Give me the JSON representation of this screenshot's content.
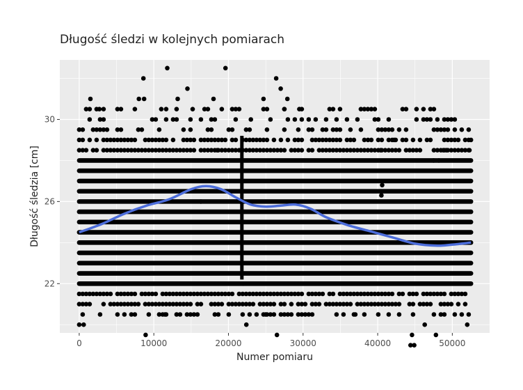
{
  "chart_data": {
    "type": "scatter",
    "title": "Długość śledzi w kolejnych pomiarach",
    "xlabel": "Numer pomiaru",
    "ylabel": "Długość śledzia [cm]",
    "xlim": [
      -2600,
      55000
    ],
    "ylim": [
      19.6,
      32.9
    ],
    "x_ticks": [
      0,
      10000,
      20000,
      30000,
      40000,
      50000
    ],
    "x_tick_labels": [
      "0",
      "10000",
      "20000",
      "30000",
      "40000",
      "50000"
    ],
    "y_ticks": [
      22,
      26,
      30
    ],
    "y_tick_labels": [
      "22",
      "26",
      "30"
    ],
    "grid": true,
    "colors": {
      "panel": "#ebebeb",
      "grid": "#ffffff",
      "points": "#000000",
      "smooth": "#4c6ddb"
    },
    "measured_lengths_cm": [
      20.5,
      21,
      21.5,
      22,
      22.5,
      23,
      23.5,
      24,
      24.5,
      25,
      25.5,
      26,
      26.5,
      27,
      27.5,
      28,
      28.5,
      29,
      29.5,
      30,
      30.5
    ],
    "outliers": [
      {
        "x": 0,
        "y": 20.0
      },
      {
        "x": 600,
        "y": 20.0
      },
      {
        "x": 1500,
        "y": 31.0
      },
      {
        "x": 2700,
        "y": 30.5
      },
      {
        "x": 8600,
        "y": 32.0
      },
      {
        "x": 8900,
        "y": 19.5
      },
      {
        "x": 8000,
        "y": 31.0
      },
      {
        "x": 8700,
        "y": 31.0
      },
      {
        "x": 11800,
        "y": 32.5
      },
      {
        "x": 11000,
        "y": 30.5
      },
      {
        "x": 11500,
        "y": 20.5
      },
      {
        "x": 13200,
        "y": 31.0
      },
      {
        "x": 14500,
        "y": 31.5
      },
      {
        "x": 15200,
        "y": 30.5
      },
      {
        "x": 16800,
        "y": 30.5
      },
      {
        "x": 18000,
        "y": 31.0
      },
      {
        "x": 19600,
        "y": 32.5
      },
      {
        "x": 18500,
        "y": 28.5
      },
      {
        "x": 22000,
        "y": 22.0
      },
      {
        "x": 23000,
        "y": 30.0
      },
      {
        "x": 24700,
        "y": 31.0
      },
      {
        "x": 26400,
        "y": 32.0
      },
      {
        "x": 27000,
        "y": 31.5
      },
      {
        "x": 27500,
        "y": 30.5
      },
      {
        "x": 27900,
        "y": 31.0
      },
      {
        "x": 29500,
        "y": 30.5
      },
      {
        "x": 26500,
        "y": 19.5
      },
      {
        "x": 22400,
        "y": 20.0
      },
      {
        "x": 25000,
        "y": 20.5
      },
      {
        "x": 37000,
        "y": 20.5
      },
      {
        "x": 38700,
        "y": 29.0
      },
      {
        "x": 40400,
        "y": 28.5
      },
      {
        "x": 42200,
        "y": 29.0
      },
      {
        "x": 40500,
        "y": 26.3
      },
      {
        "x": 40600,
        "y": 26.8
      },
      {
        "x": 44400,
        "y": 19.0
      },
      {
        "x": 44900,
        "y": 19.0
      },
      {
        "x": 44600,
        "y": 19.5
      },
      {
        "x": 46300,
        "y": 20.0
      },
      {
        "x": 47800,
        "y": 19.5
      },
      {
        "x": 48800,
        "y": 28.5
      },
      {
        "x": 49200,
        "y": 28.5
      },
      {
        "x": 48200,
        "y": 28.0
      },
      {
        "x": 47500,
        "y": 28.0
      },
      {
        "x": 52000,
        "y": 20.0
      },
      {
        "x": 52500,
        "y": 29.0
      },
      {
        "x": 52300,
        "y": 28.5
      },
      {
        "x": 52400,
        "y": 27.5
      },
      {
        "x": 21600,
        "y": 26.0
      },
      {
        "x": 16300,
        "y": 26.0
      }
    ],
    "series": [
      {
        "type": "smooth",
        "x": [
          0,
          3000,
          6000,
          9000,
          12000,
          15000,
          17000,
          19000,
          21000,
          23000,
          25000,
          27000,
          29000,
          31000,
          33000,
          36000,
          39000,
          42000,
          45000,
          48000,
          50000,
          52500
        ],
        "values": [
          24.5,
          24.9,
          25.4,
          25.8,
          26.1,
          26.6,
          26.75,
          26.6,
          26.2,
          25.85,
          25.75,
          25.8,
          25.85,
          25.65,
          25.25,
          24.85,
          24.55,
          24.25,
          23.95,
          23.85,
          23.9,
          24.0
        ]
      }
    ]
  }
}
